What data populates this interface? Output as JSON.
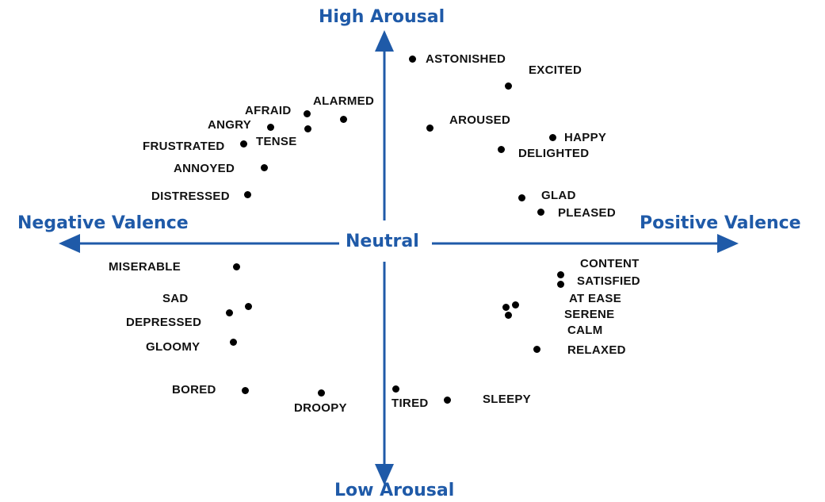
{
  "axes": {
    "top": "High Arousal",
    "bottom": "Low Arousal",
    "left": "Negative Valence",
    "right": "Positive Valence",
    "center": "Neutral",
    "color": "#1f5aa8"
  },
  "emotions": [
    {
      "id": "astonished",
      "label": "ASTONISHED"
    },
    {
      "id": "excited",
      "label": "EXCITED"
    },
    {
      "id": "aroused",
      "label": "AROUSED"
    },
    {
      "id": "happy",
      "label": "HAPPY"
    },
    {
      "id": "delighted",
      "label": "DELIGHTED"
    },
    {
      "id": "glad",
      "label": "GLAD"
    },
    {
      "id": "pleased",
      "label": "PLEASED"
    },
    {
      "id": "alarmed",
      "label": "ALARMED"
    },
    {
      "id": "afraid",
      "label": "AFRAID"
    },
    {
      "id": "angry",
      "label": "ANGRY"
    },
    {
      "id": "tense",
      "label": "TENSE"
    },
    {
      "id": "frustrated",
      "label": "FRUSTRATED"
    },
    {
      "id": "annoyed",
      "label": "ANNOYED"
    },
    {
      "id": "distressed",
      "label": "DISTRESSED"
    },
    {
      "id": "miserable",
      "label": "MISERABLE"
    },
    {
      "id": "sad",
      "label": "SAD"
    },
    {
      "id": "depressed",
      "label": "DEPRESSED"
    },
    {
      "id": "gloomy",
      "label": "GLOOMY"
    },
    {
      "id": "bored",
      "label": "BORED"
    },
    {
      "id": "droopy",
      "label": "DROOPY"
    },
    {
      "id": "tired",
      "label": "TIRED"
    },
    {
      "id": "sleepy",
      "label": "SLEEPY"
    },
    {
      "id": "content",
      "label": "CONTENT"
    },
    {
      "id": "satisfied",
      "label": "SATISFIED"
    },
    {
      "id": "at-ease",
      "label": "AT EASE"
    },
    {
      "id": "serene",
      "label": "SERENE"
    },
    {
      "id": "calm",
      "label": "CALM"
    },
    {
      "id": "relaxed",
      "label": "RELAXED"
    }
  ]
}
